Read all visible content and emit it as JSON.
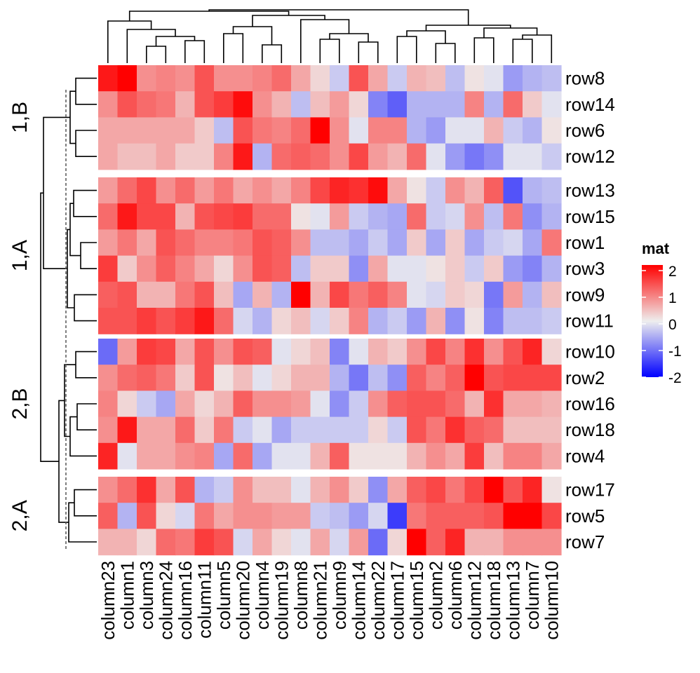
{
  "chart_data": {
    "type": "heatmap",
    "title": "",
    "columns": [
      "column23",
      "column1",
      "column3",
      "column24",
      "column16",
      "column11",
      "column5",
      "column20",
      "column4",
      "column19",
      "column8",
      "column21",
      "column9",
      "column14",
      "column22",
      "column17",
      "column15",
      "column2",
      "column6",
      "column12",
      "column18",
      "column13",
      "column7",
      "column10"
    ],
    "row_groups": [
      {
        "name": "1,B",
        "rows": [
          "row8",
          "row14",
          "row6",
          "row12"
        ]
      },
      {
        "name": "1,A",
        "rows": [
          "row13",
          "row15",
          "row1",
          "row3",
          "row9",
          "row11"
        ]
      },
      {
        "name": "2,B",
        "rows": [
          "row10",
          "row2",
          "row16",
          "row18",
          "row4"
        ]
      },
      {
        "name": "2,A",
        "rows": [
          "row17",
          "row5",
          "row7"
        ]
      }
    ],
    "values": {
      "row8": [
        1.8,
        2.1,
        0.8,
        0.9,
        0.8,
        1.3,
        0.8,
        0.8,
        0.9,
        1.1,
        0.6,
        0.2,
        -0.3,
        1.3,
        0.6,
        -0.3,
        0.5,
        0.4,
        -0.4,
        0.1,
        -0.1,
        -0.7,
        -0.5,
        -0.4
      ],
      "row14": [
        0.8,
        1.3,
        1.1,
        1.0,
        0.5,
        1.3,
        1.5,
        1.9,
        0.8,
        0.5,
        -0.4,
        0.4,
        0.7,
        0.2,
        -0.9,
        -1.2,
        -0.5,
        -0.5,
        -0.5,
        0.9,
        -0.5,
        1.1,
        0.3,
        -0.1
      ],
      "row6": [
        0.6,
        0.6,
        0.6,
        0.6,
        0.6,
        0.3,
        -0.4,
        1.3,
        1.0,
        0.9,
        1.1,
        2.0,
        0.8,
        -0.1,
        0.9,
        0.9,
        -0.5,
        -0.7,
        -0.1,
        -0.1,
        0.5,
        -0.3,
        -0.5,
        0.1
      ],
      "row12": [
        0.6,
        0.4,
        0.4,
        0.6,
        0.3,
        0.3,
        0.9,
        1.8,
        -0.5,
        1.1,
        1.2,
        1.1,
        0.8,
        1.4,
        0.7,
        0.5,
        1.1,
        -0.1,
        -0.7,
        -1.0,
        -0.8,
        -0.1,
        -0.1,
        -0.3
      ],
      "row13": [
        0.7,
        1.1,
        1.4,
        0.8,
        1.1,
        0.7,
        1.0,
        0.6,
        0.8,
        0.6,
        0.9,
        1.4,
        1.7,
        1.6,
        1.9,
        0.6,
        0.1,
        -0.3,
        0.8,
        0.5,
        1.2,
        -1.3,
        -0.5,
        -0.4
      ],
      "row15": [
        1.1,
        1.8,
        1.4,
        1.4,
        0.5,
        1.3,
        1.4,
        1.5,
        1.1,
        1.1,
        0.1,
        -0.1,
        0.7,
        -0.3,
        -0.5,
        -0.6,
        1.1,
        -0.3,
        -0.2,
        0.8,
        -0.4,
        1.0,
        -0.8,
        -0.5
      ],
      "row1": [
        0.7,
        1.0,
        0.6,
        1.3,
        1.1,
        0.9,
        0.9,
        1.0,
        1.3,
        1.2,
        0.8,
        -0.4,
        -0.4,
        -0.6,
        -0.3,
        -0.6,
        0.3,
        -0.6,
        0.3,
        -0.6,
        -0.3,
        -0.2,
        -0.6,
        1.0
      ],
      "row3": [
        1.5,
        0.3,
        0.8,
        1.2,
        0.9,
        0.6,
        0.2,
        0.8,
        1.3,
        1.2,
        -0.4,
        0.3,
        0.3,
        -0.8,
        0.6,
        -0.1,
        -0.1,
        0.1,
        0.3,
        -0.3,
        0.3,
        -0.7,
        -0.9,
        -0.5
      ],
      "row9": [
        1.2,
        1.3,
        0.5,
        0.5,
        1.0,
        1.3,
        0.4,
        -0.6,
        0.5,
        -0.5,
        2.0,
        0.5,
        1.4,
        1.0,
        1.2,
        0.9,
        -0.1,
        -0.2,
        0.3,
        0.2,
        -1.0,
        0.7,
        -0.5,
        0.4
      ],
      "row11": [
        1.3,
        1.3,
        1.5,
        1.3,
        1.5,
        1.8,
        1.1,
        -0.2,
        -0.5,
        0.2,
        0.4,
        -0.2,
        0.3,
        0.9,
        -0.5,
        -0.3,
        -0.7,
        0.5,
        -0.8,
        0.1,
        -0.9,
        -0.4,
        -0.4,
        -0.3
      ],
      "row10": [
        -1.1,
        0.7,
        1.5,
        1.4,
        0.6,
        1.3,
        0.8,
        1.3,
        1.2,
        -0.1,
        0.2,
        0.4,
        -0.9,
        -0.1,
        0.5,
        0.3,
        0.8,
        1.4,
        0.9,
        1.6,
        0.8,
        1.3,
        1.7,
        0.2
      ],
      "row2": [
        0.8,
        1.1,
        1.2,
        1.0,
        0.3,
        1.3,
        0.1,
        0.4,
        -0.1,
        0.2,
        0.5,
        0.5,
        -0.5,
        -1.0,
        -0.4,
        -0.8,
        1.2,
        0.9,
        1.2,
        2.1,
        1.3,
        1.4,
        1.4,
        1.4
      ],
      "row16": [
        0.9,
        0.2,
        -0.3,
        -0.6,
        0.6,
        0.2,
        0.5,
        1.2,
        0.8,
        0.8,
        0.7,
        -0.1,
        -0.8,
        -0.3,
        0.8,
        1.2,
        1.3,
        1.3,
        1.1,
        0.5,
        1.6,
        0.6,
        0.6,
        0.5
      ],
      "row18": [
        0.8,
        1.8,
        0.6,
        0.6,
        1.1,
        0.3,
        1.0,
        -0.3,
        -0.1,
        -0.6,
        -0.3,
        -0.3,
        -0.3,
        -0.3,
        0.2,
        -0.3,
        1.3,
        1.0,
        1.6,
        1.2,
        1.1,
        0.4,
        0.4,
        0.4
      ],
      "row4": [
        1.7,
        -0.1,
        0.6,
        0.6,
        0.8,
        0.9,
        -0.6,
        1.1,
        -0.6,
        -0.1,
        -0.1,
        0.5,
        1.2,
        0.1,
        0.1,
        0.1,
        0.5,
        0.8,
        0.6,
        1.5,
        0.4,
        0.9,
        0.9,
        0.6
      ],
      "row17": [
        0.8,
        1.1,
        1.6,
        0.6,
        1.3,
        -0.5,
        -0.3,
        0.8,
        0.4,
        0.4,
        -0.1,
        0.5,
        0.8,
        0.3,
        -0.8,
        0.6,
        1.2,
        1.4,
        1.0,
        1.4,
        2.1,
        1.3,
        1.7,
        0.1
      ],
      "row5": [
        1.2,
        -0.5,
        1.3,
        0.2,
        -0.2,
        1.0,
        0.6,
        0.8,
        0.8,
        0.7,
        0.7,
        -0.3,
        -0.4,
        -0.7,
        -0.2,
        -1.5,
        1.0,
        1.2,
        1.2,
        1.2,
        1.3,
        2.1,
        2.1,
        1.4
      ],
      "row7": [
        0.5,
        0.5,
        0.2,
        1.1,
        1.0,
        1.5,
        1.3,
        -0.2,
        0.6,
        0.2,
        -0.1,
        0.6,
        -0.2,
        0.7,
        -1.1,
        0.2,
        2.0,
        1.2,
        1.7,
        0.5,
        0.5,
        0.8,
        0.8,
        0.8
      ]
    },
    "color_scale": {
      "min": -2,
      "mid": 0,
      "max": 2,
      "low_color": "#0000ff",
      "mid_color": "#eeeeee",
      "high_color": "#ff0000"
    },
    "legend": {
      "title": "mat",
      "ticks": [
        "2",
        "1",
        "0",
        "-1",
        "-2"
      ],
      "position": "right"
    }
  }
}
